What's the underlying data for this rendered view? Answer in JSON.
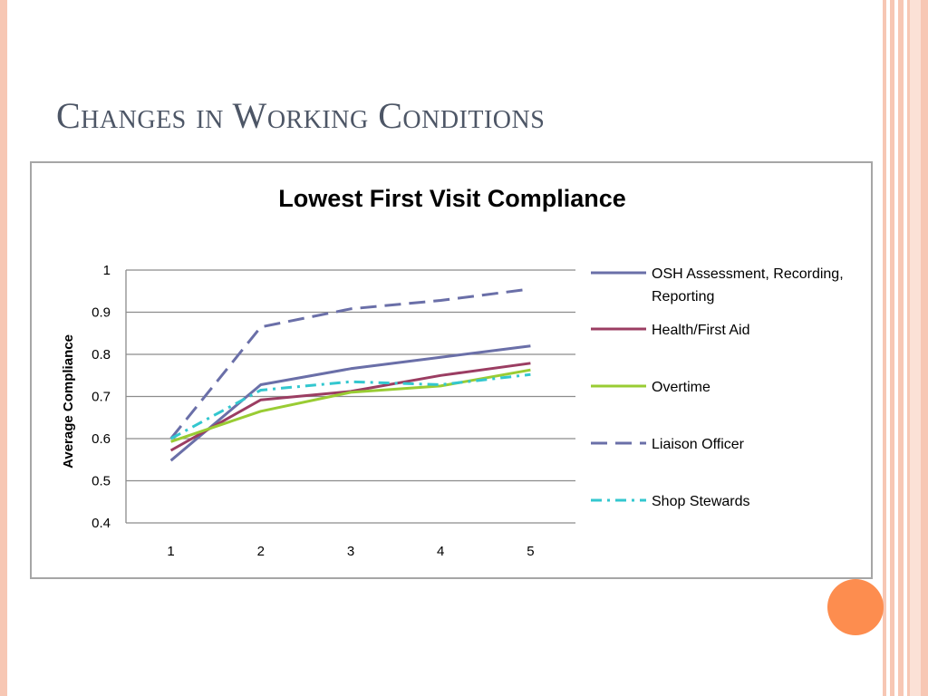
{
  "slide": {
    "title": "Changes in Working Conditions",
    "accent_color": "#fd8d4f"
  },
  "chart_data": {
    "type": "line",
    "title": "Lowest First Visit Compliance",
    "ylabel": "Average Compliance",
    "xlabel": "",
    "x": [
      1,
      2,
      3,
      4,
      5
    ],
    "x_tick_labels": [
      "1",
      "2",
      "3",
      "4",
      "5"
    ],
    "ylim": [
      0.4,
      1
    ],
    "y_ticks": [
      0.4,
      0.5,
      0.6,
      0.7,
      0.8,
      0.9,
      1
    ],
    "y_tick_labels": [
      "0.4",
      "0.5",
      "0.6",
      "0.7",
      "0.8",
      "0.9",
      "1"
    ],
    "grid": true,
    "legend_position": "right",
    "series": [
      {
        "name": "OSH Assessment, Recording, Reporting",
        "values": [
          0.548,
          0.728,
          0.766,
          0.793,
          0.82
        ],
        "color": "#6a6fa8",
        "dash": "solid"
      },
      {
        "name": "Health/First Aid",
        "values": [
          0.572,
          0.692,
          0.712,
          0.75,
          0.779
        ],
        "color": "#9b3d62",
        "dash": "solid"
      },
      {
        "name": "Overtime",
        "values": [
          0.593,
          0.665,
          0.71,
          0.725,
          0.763
        ],
        "color": "#99cc33",
        "dash": "solid"
      },
      {
        "name": "Liaison Officer",
        "values": [
          0.6,
          0.865,
          0.908,
          0.928,
          0.955
        ],
        "color": "#6a6fa8",
        "dash": "long-dash"
      },
      {
        "name": "Shop Stewards",
        "values": [
          0.6,
          0.715,
          0.735,
          0.728,
          0.752
        ],
        "color": "#33c7cf",
        "dash": "dash-dot"
      }
    ]
  }
}
